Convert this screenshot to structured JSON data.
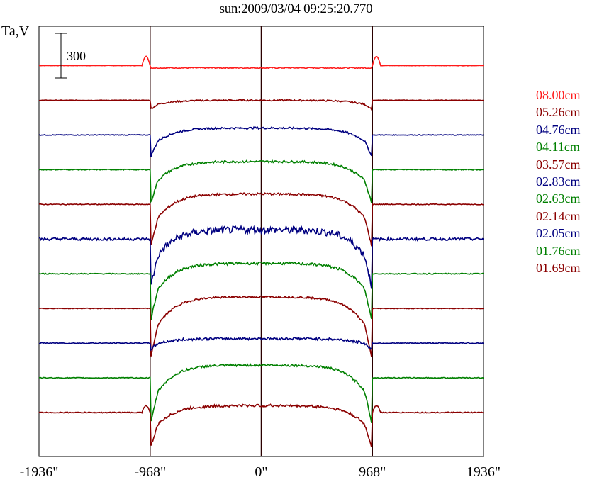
{
  "title": "sun:2009/03/04 09:25:20.770",
  "y_label": "Ta,V",
  "scale_bar_label": "300",
  "colors": {
    "red": "#ff1b1b",
    "maroon": "#8b0000",
    "navy": "#000080",
    "green": "#008000",
    "axis": "#000000"
  },
  "chart_data": {
    "type": "line",
    "title": "sun:2009/03/04 09:25:20.770",
    "ylabel": "Ta,V",
    "xlim": [
      -1936,
      1936
    ],
    "x_ticks": [
      "-1936\"",
      "-968\"",
      "0\"",
      "968\"",
      "1936\""
    ],
    "x_tick_values": [
      -1936,
      -968,
      0,
      968,
      1936
    ],
    "vertical_markers": [
      -968,
      0,
      968
    ],
    "scale_bar": 300,
    "series": [
      {
        "name": "08.00cm",
        "color": "#ff1b1b",
        "baseline": 2530,
        "disk_offset": -20,
        "limb_dip": 0,
        "limb_bump": 80,
        "noise": 6
      },
      {
        "name": "05.26cm",
        "color": "#8b0000",
        "baseline": 2230,
        "disk_offset": 0,
        "limb_dip": 80,
        "limb_bump": 0,
        "noise": 8
      },
      {
        "name": "04.76cm",
        "color": "#000080",
        "baseline": 1930,
        "disk_offset": 60,
        "limb_dip": 260,
        "limb_bump": 0,
        "noise": 10
      },
      {
        "name": "04.11cm",
        "color": "#008000",
        "baseline": 1630,
        "disk_offset": 70,
        "limb_dip": 380,
        "limb_bump": 0,
        "noise": 12
      },
      {
        "name": "03.57cm",
        "color": "#8b0000",
        "baseline": 1330,
        "disk_offset": 90,
        "limb_dip": 480,
        "limb_bump": 0,
        "noise": 12
      },
      {
        "name": "02.83cm",
        "color": "#000080",
        "baseline": 1030,
        "disk_offset": 80,
        "limb_dip": 520,
        "limb_bump": 0,
        "noise": 40
      },
      {
        "name": "02.63cm",
        "color": "#008000",
        "baseline": 730,
        "disk_offset": 90,
        "limb_dip": 520,
        "limb_bump": 0,
        "noise": 14
      },
      {
        "name": "02.14cm",
        "color": "#8b0000",
        "baseline": 430,
        "disk_offset": 100,
        "limb_dip": 560,
        "limb_bump": 0,
        "noise": 10
      },
      {
        "name": "02.05cm",
        "color": "#000080",
        "baseline": 130,
        "disk_offset": 40,
        "limb_dip": 100,
        "limb_bump": 0,
        "noise": 14
      },
      {
        "name": "01.76cm",
        "color": "#008000",
        "baseline": -170,
        "disk_offset": 110,
        "limb_dip": 530,
        "limb_bump": 0,
        "noise": 12
      },
      {
        "name": "01.69cm",
        "color": "#8b0000",
        "baseline": -470,
        "disk_offset": 60,
        "limb_dip": 380,
        "limb_bump": 60,
        "noise": 14
      }
    ],
    "ylim": [
      -850,
      2870
    ],
    "grid": false,
    "legend_position": "right"
  }
}
